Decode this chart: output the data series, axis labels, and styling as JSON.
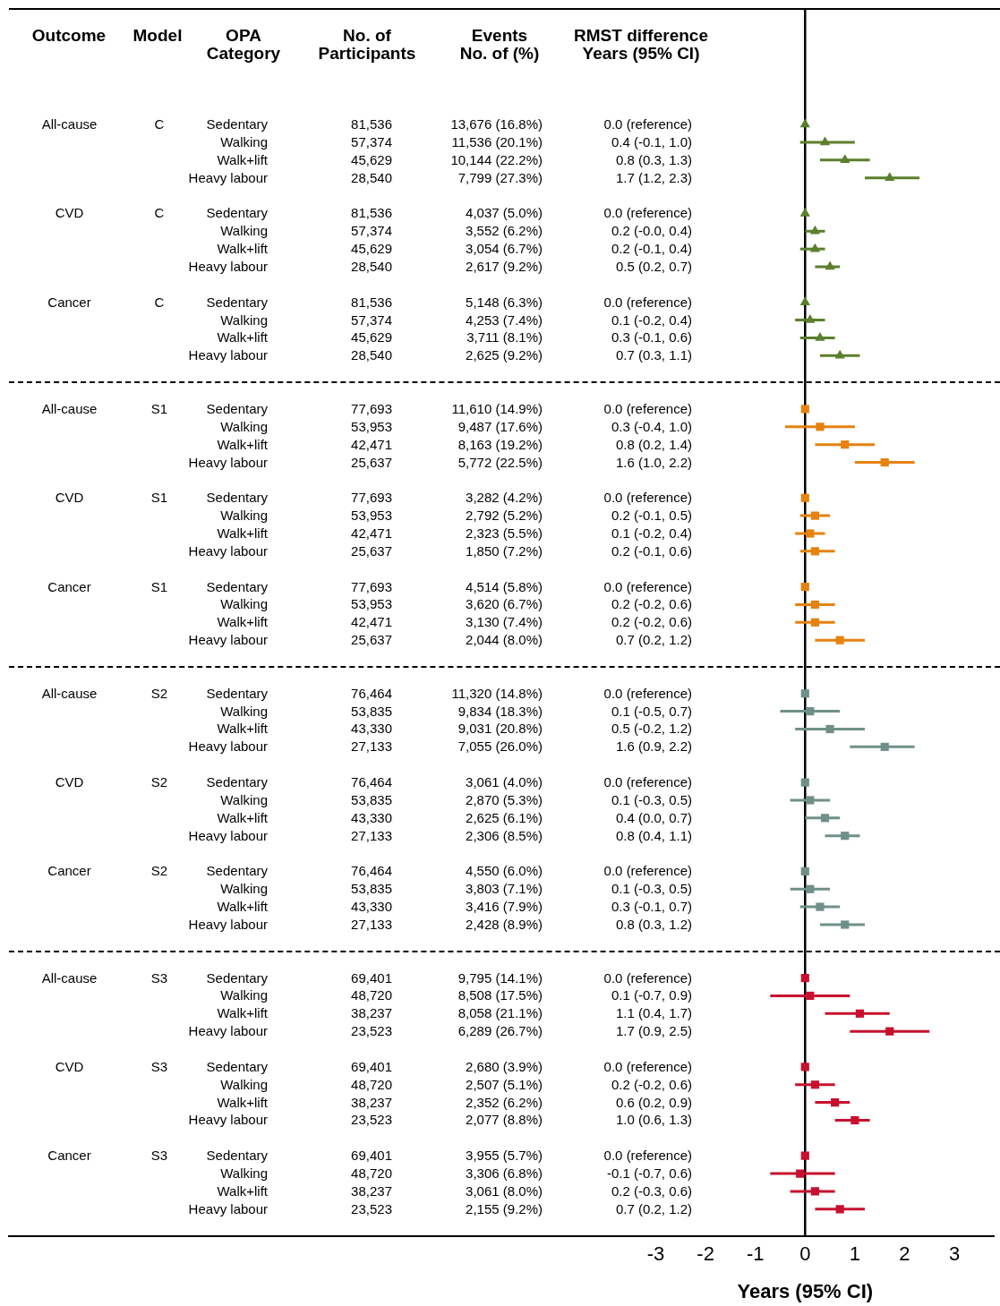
{
  "chart_data": [
    {
      "type": "other",
      "categories": [
        "Outcome",
        "Model",
        "OPA\nCategory",
        "No. of\nParticipants",
        "Events\nNo. of (%)",
        "RMST difference\nYears (95% CI)"
      ],
      "cell_labels": [
        [
          "All-cause",
          "C",
          "Sedentary",
          "81,536",
          "13,676 (16.8%)",
          "0.0 (reference)"
        ],
        [
          null,
          null,
          "Walking",
          "57,374",
          "11,536 (20.1%)",
          "0.4 (-0.1, 1.0)"
        ],
        [
          null,
          null,
          "Walk+lift",
          "45,629",
          "10,144 (22.2%)",
          "0.8 (0.3, 1.3)"
        ],
        [
          null,
          null,
          "Heavy labour",
          "28,540",
          "7,799 (27.3%)",
          "1.7 (1.2, 2.3)"
        ],
        [
          "CVD",
          "C",
          "Sedentary",
          "81,536",
          "4,037 (5.0%)",
          "0.0 (reference)"
        ],
        [
          null,
          null,
          "Walking",
          "57,374",
          "3,552 (6.2%)",
          "0.2 (-0.0, 0.4)"
        ],
        [
          null,
          null,
          "Walk+lift",
          "45,629",
          "3,054 (6.7%)",
          "0.2 (-0.1, 0.4)"
        ],
        [
          null,
          null,
          "Heavy labour",
          "28,540",
          "2,617 (9.2%)",
          "0.5 (0.2, 0.7)"
        ],
        [
          "Cancer",
          "C",
          "Sedentary",
          "81,536",
          "5,148 (6.3%)",
          "0.0 (reference)"
        ],
        [
          null,
          null,
          "Walking",
          "57,374",
          "4,253 (7.4%)",
          "0.1 (-0.2, 0.4)"
        ],
        [
          null,
          null,
          "Walk+lift",
          "45,629",
          "3,711 (8.1%)",
          "0.3 (-0.1, 0.6)"
        ],
        [
          null,
          null,
          "Heavy labour",
          "28,540",
          "2,625 (9.2%)",
          "0.7 (0.3, 1.1)"
        ],
        [
          "All-cause",
          "S1",
          "Sedentary",
          "77,693",
          "11,610 (14.9%)",
          "0.0 (reference)"
        ],
        [
          null,
          null,
          "Walking",
          "53,953",
          "9,487 (17.6%)",
          "0.3 (-0.4, 1.0)"
        ],
        [
          null,
          null,
          "Walk+lift",
          "42,471",
          "8,163 (19.2%)",
          "0.8 (0.2, 1.4)"
        ],
        [
          null,
          null,
          "Heavy labour",
          "25,637",
          "5,772 (22.5%)",
          "1.6 (1.0, 2.2)"
        ],
        [
          "CVD",
          "S1",
          "Sedentary",
          "77,693",
          "3,282 (4.2%)",
          "0.0 (reference)"
        ],
        [
          null,
          null,
          "Walking",
          "53,953",
          "2,792 (5.2%)",
          "0.2 (-0.1, 0.5)"
        ],
        [
          null,
          null,
          "Walk+lift",
          "42,471",
          "2,323 (5.5%)",
          "0.1 (-0.2, 0.4)"
        ],
        [
          null,
          null,
          "Heavy labour",
          "25,637",
          "1,850 (7.2%)",
          "0.2 (-0.1, 0.6)"
        ],
        [
          "Cancer",
          "S1",
          "Sedentary",
          "77,693",
          "4,514 (5.8%)",
          "0.0 (reference)"
        ],
        [
          null,
          null,
          "Walking",
          "53,953",
          "3,620 (6.7%)",
          "0.2 (-0.2, 0.6)"
        ],
        [
          null,
          null,
          "Walk+lift",
          "42,471",
          "3,130 (7.4%)",
          "0.2 (-0.2, 0.6)"
        ],
        [
          null,
          null,
          "Heavy labour",
          "25,637",
          "2,044 (8.0%)",
          "0.7 (0.2, 1.2)"
        ],
        [
          "All-cause",
          "S2",
          "Sedentary",
          "76,464",
          "11,320 (14.8%)",
          "0.0 (reference)"
        ],
        [
          null,
          null,
          "Walking",
          "53,835",
          "9,834 (18.3%)",
          "0.1 (-0.5, 0.7)"
        ],
        [
          null,
          null,
          "Walk+lift",
          "43,330",
          "9,031 (20.8%)",
          "0.5 (-0.2, 1.2)"
        ],
        [
          null,
          null,
          "Heavy labour",
          "27,133",
          "7,055 (26.0%)",
          "1.6 (0.9, 2.2)"
        ],
        [
          "CVD",
          "S2",
          "Sedentary",
          "76,464",
          "3,061 (4.0%)",
          "0.0 (reference)"
        ],
        [
          null,
          null,
          "Walking",
          "53,835",
          "2,870 (5.3%)",
          "0.1 (-0.3, 0.5)"
        ],
        [
          null,
          null,
          "Walk+lift",
          "43,330",
          "2,625 (6.1%)",
          "0.4 (0.0, 0.7)"
        ],
        [
          null,
          null,
          "Heavy labour",
          "27,133",
          "2,306 (8.5%)",
          "0.8 (0.4, 1.1)"
        ],
        [
          "Cancer",
          "S2",
          "Sedentary",
          "76,464",
          "4,550 (6.0%)",
          "0.0 (reference)"
        ],
        [
          null,
          null,
          "Walking",
          "53,835",
          "3,803 (7.1%)",
          "0.1 (-0.3, 0.5)"
        ],
        [
          null,
          null,
          "Walk+lift",
          "43,330",
          "3,416 (7.9%)",
          "0.3 (-0.1, 0.7)"
        ],
        [
          null,
          null,
          "Heavy labour",
          "27,133",
          "2,428 (8.9%)",
          "0.8 (0.3, 1.2)"
        ],
        [
          "All-cause",
          "S3",
          "Sedentary",
          "69,401",
          "9,795 (14.1%)",
          "0.0 (reference)"
        ],
        [
          null,
          null,
          "Walking",
          "48,720",
          "8,508 (17.5%)",
          "0.1 (-0.7, 0.9)"
        ],
        [
          null,
          null,
          "Walk+lift",
          "38,237",
          "8,058 (21.1%)",
          "1.1 (0.4, 1.7)"
        ],
        [
          null,
          null,
          "Heavy labour",
          "23,523",
          "6,289 (26.7%)",
          "1.7 (0.9, 2.5)"
        ],
        [
          "CVD",
          "S3",
          "Sedentary",
          "69,401",
          "2,680 (3.9%)",
          "0.0 (reference)"
        ],
        [
          null,
          null,
          "Walking",
          "48,720",
          "2,507 (5.1%)",
          "0.2 (-0.2, 0.6)"
        ],
        [
          null,
          null,
          "Walk+lift",
          "38,237",
          "2,352 (6.2%)",
          "0.6 (0.2, 0.9)"
        ],
        [
          null,
          null,
          "Heavy labour",
          "23,523",
          "2,077 (8.8%)",
          "1.0 (0.6, 1.3)"
        ],
        [
          "Cancer",
          "S3",
          "Sedentary",
          "69,401",
          "3,955 (5.7%)",
          "0.0 (reference)"
        ],
        [
          null,
          null,
          "Walking",
          "48,720",
          "3,306 (6.8%)",
          "-0.1 (-0.7, 0.6)"
        ],
        [
          null,
          null,
          "Walk+lift",
          "38,237",
          "3,061 (8.0%)",
          "0.2 (-0.3, 0.6)"
        ],
        [
          null,
          null,
          "Heavy labour",
          "23,523",
          "2,155 (9.2%)",
          "0.7 (0.2, 1.2)"
        ]
      ]
    },
    {
      "type": "scatter",
      "orientation": "horizontal",
      "xlabel": "Years (95% CI)",
      "xlim": [
        -16,
        3.8
      ],
      "xticks": [
        -3,
        -2,
        -1,
        0,
        1,
        2,
        3
      ],
      "ref_lines": [
        {
          "axis": "x",
          "value": 0,
          "color": "#000000"
        }
      ],
      "categories": [
        null,
        null,
        null,
        null,
        null,
        null,
        null,
        null,
        null,
        null,
        null,
        null,
        null,
        null,
        null,
        null,
        null,
        null,
        null,
        null,
        null,
        null,
        null,
        null,
        null,
        null,
        null,
        null,
        null,
        null,
        null,
        null,
        null,
        null,
        null,
        null,
        null,
        null,
        null,
        null,
        null,
        null,
        null,
        null,
        null,
        null,
        null,
        null,
        null,
        null,
        null,
        null,
        null,
        null,
        null,
        null,
        null,
        null,
        null,
        null,
        null,
        null,
        null,
        null,
        null,
        null,
        null,
        null,
        null
      ],
      "series": [
        {
          "color": "#5b7f2b",
          "marker": "triangle",
          "values": [
            null,
            null,
            null,
            null,
            null,
            null,
            0,
            0.4,
            0.8,
            1.7,
            null,
            0,
            0.2,
            0.2,
            0.5,
            null,
            0,
            0.1,
            0.3,
            0.7,
            null,
            null,
            null,
            null,
            null,
            null,
            null,
            null,
            null,
            null,
            null,
            null,
            null,
            null,
            null,
            null,
            null,
            null,
            null,
            null,
            null,
            null,
            null,
            null,
            null,
            null,
            null,
            null,
            null,
            null,
            null,
            null,
            null,
            null,
            null,
            null,
            null,
            null,
            null,
            null,
            null,
            null,
            null,
            null,
            null,
            null,
            null,
            null,
            null
          ],
          "errors": [
            null,
            null,
            null,
            null,
            null,
            null,
            null,
            [
              -0.1,
              1.0
            ],
            [
              0.3,
              1.3
            ],
            [
              1.2,
              2.3
            ],
            null,
            null,
            [
              0.0,
              0.4
            ],
            [
              -0.1,
              0.4
            ],
            [
              0.2,
              0.7
            ],
            null,
            null,
            [
              -0.2,
              0.4
            ],
            [
              -0.1,
              0.6
            ],
            [
              0.3,
              1.1
            ],
            null,
            null,
            null,
            null,
            null,
            null,
            null,
            null,
            null,
            null,
            null,
            null,
            null,
            null,
            null,
            null,
            null,
            null,
            null,
            null,
            null,
            null,
            null,
            null,
            null,
            null,
            null,
            null,
            null,
            null,
            null,
            null,
            null,
            null,
            null,
            null,
            null,
            null,
            null,
            null,
            null,
            null,
            null,
            null,
            null,
            null,
            null,
            null,
            null
          ]
        },
        {
          "color": "#e6820e",
          "marker": "square",
          "values": [
            null,
            null,
            null,
            null,
            null,
            null,
            null,
            null,
            null,
            null,
            null,
            null,
            null,
            null,
            null,
            null,
            null,
            null,
            null,
            null,
            null,
            null,
            0,
            0.3,
            0.8,
            1.6,
            null,
            0,
            0.2,
            0.1,
            0.2,
            null,
            0,
            0.2,
            0.2,
            0.7,
            null,
            null,
            null,
            null,
            null,
            null,
            null,
            null,
            null,
            null,
            null,
            null,
            null,
            null,
            null,
            null,
            null,
            null,
            null,
            null,
            null,
            null,
            null,
            null,
            null,
            null,
            null,
            null,
            null,
            null,
            null,
            null,
            null
          ],
          "errors": [
            null,
            null,
            null,
            null,
            null,
            null,
            null,
            null,
            null,
            null,
            null,
            null,
            null,
            null,
            null,
            null,
            null,
            null,
            null,
            null,
            null,
            null,
            null,
            [
              -0.4,
              1.0
            ],
            [
              0.2,
              1.4
            ],
            [
              1.0,
              2.2
            ],
            null,
            null,
            [
              -0.1,
              0.5
            ],
            [
              -0.2,
              0.4
            ],
            [
              -0.1,
              0.6
            ],
            null,
            null,
            [
              -0.2,
              0.6
            ],
            [
              -0.2,
              0.6
            ],
            [
              0.2,
              1.2
            ],
            null,
            null,
            null,
            null,
            null,
            null,
            null,
            null,
            null,
            null,
            null,
            null,
            null,
            null,
            null,
            null,
            null,
            null,
            null,
            null,
            null,
            null,
            null,
            null,
            null,
            null,
            null,
            null,
            null,
            null,
            null,
            null,
            null
          ]
        },
        {
          "color": "#6f9088",
          "marker": "square",
          "values": [
            null,
            null,
            null,
            null,
            null,
            null,
            null,
            null,
            null,
            null,
            null,
            null,
            null,
            null,
            null,
            null,
            null,
            null,
            null,
            null,
            null,
            null,
            null,
            null,
            null,
            null,
            null,
            null,
            null,
            null,
            null,
            null,
            null,
            null,
            null,
            null,
            null,
            null,
            0,
            0.1,
            0.5,
            1.6,
            null,
            0,
            0.1,
            0.4,
            0.8,
            null,
            0,
            0.1,
            0.3,
            0.8,
            null,
            null,
            null,
            null,
            null,
            null,
            null,
            null,
            null,
            null,
            null,
            null,
            null,
            null,
            null,
            null,
            null
          ],
          "errors": [
            null,
            null,
            null,
            null,
            null,
            null,
            null,
            null,
            null,
            null,
            null,
            null,
            null,
            null,
            null,
            null,
            null,
            null,
            null,
            null,
            null,
            null,
            null,
            null,
            null,
            null,
            null,
            null,
            null,
            null,
            null,
            null,
            null,
            null,
            null,
            null,
            null,
            null,
            null,
            [
              -0.5,
              0.7
            ],
            [
              -0.2,
              1.2
            ],
            [
              0.9,
              2.2
            ],
            null,
            null,
            [
              -0.3,
              0.5
            ],
            [
              0.0,
              0.7
            ],
            [
              0.4,
              1.1
            ],
            null,
            null,
            [
              -0.3,
              0.5
            ],
            [
              -0.1,
              0.7
            ],
            [
              0.3,
              1.2
            ],
            null,
            null,
            null,
            null,
            null,
            null,
            null,
            null,
            null,
            null,
            null,
            null,
            null,
            null,
            null,
            null,
            null
          ]
        },
        {
          "color": "#c8102e",
          "marker": "square",
          "values": [
            null,
            null,
            null,
            null,
            null,
            null,
            null,
            null,
            null,
            null,
            null,
            null,
            null,
            null,
            null,
            null,
            null,
            null,
            null,
            null,
            null,
            null,
            null,
            null,
            null,
            null,
            null,
            null,
            null,
            null,
            null,
            null,
            null,
            null,
            null,
            null,
            null,
            null,
            null,
            null,
            null,
            null,
            null,
            null,
            null,
            null,
            null,
            null,
            null,
            null,
            null,
            null,
            null,
            null,
            0,
            0.1,
            1.1,
            1.7,
            null,
            0,
            0.2,
            0.6,
            1.0,
            null,
            0,
            -0.1,
            0.2,
            0.7,
            null
          ],
          "errors": [
            null,
            null,
            null,
            null,
            null,
            null,
            null,
            null,
            null,
            null,
            null,
            null,
            null,
            null,
            null,
            null,
            null,
            null,
            null,
            null,
            null,
            null,
            null,
            null,
            null,
            null,
            null,
            null,
            null,
            null,
            null,
            null,
            null,
            null,
            null,
            null,
            null,
            null,
            null,
            null,
            null,
            null,
            null,
            null,
            null,
            null,
            null,
            null,
            null,
            null,
            null,
            null,
            null,
            null,
            null,
            [
              -0.7,
              0.9
            ],
            [
              0.4,
              1.7
            ],
            [
              0.9,
              2.5
            ],
            null,
            null,
            [
              -0.2,
              0.6
            ],
            [
              0.2,
              0.9
            ],
            [
              0.6,
              1.3
            ],
            null,
            null,
            [
              -0.7,
              0.6
            ],
            [
              -0.3,
              0.6
            ],
            [
              0.2,
              1.2
            ],
            null
          ]
        }
      ]
    }
  ]
}
